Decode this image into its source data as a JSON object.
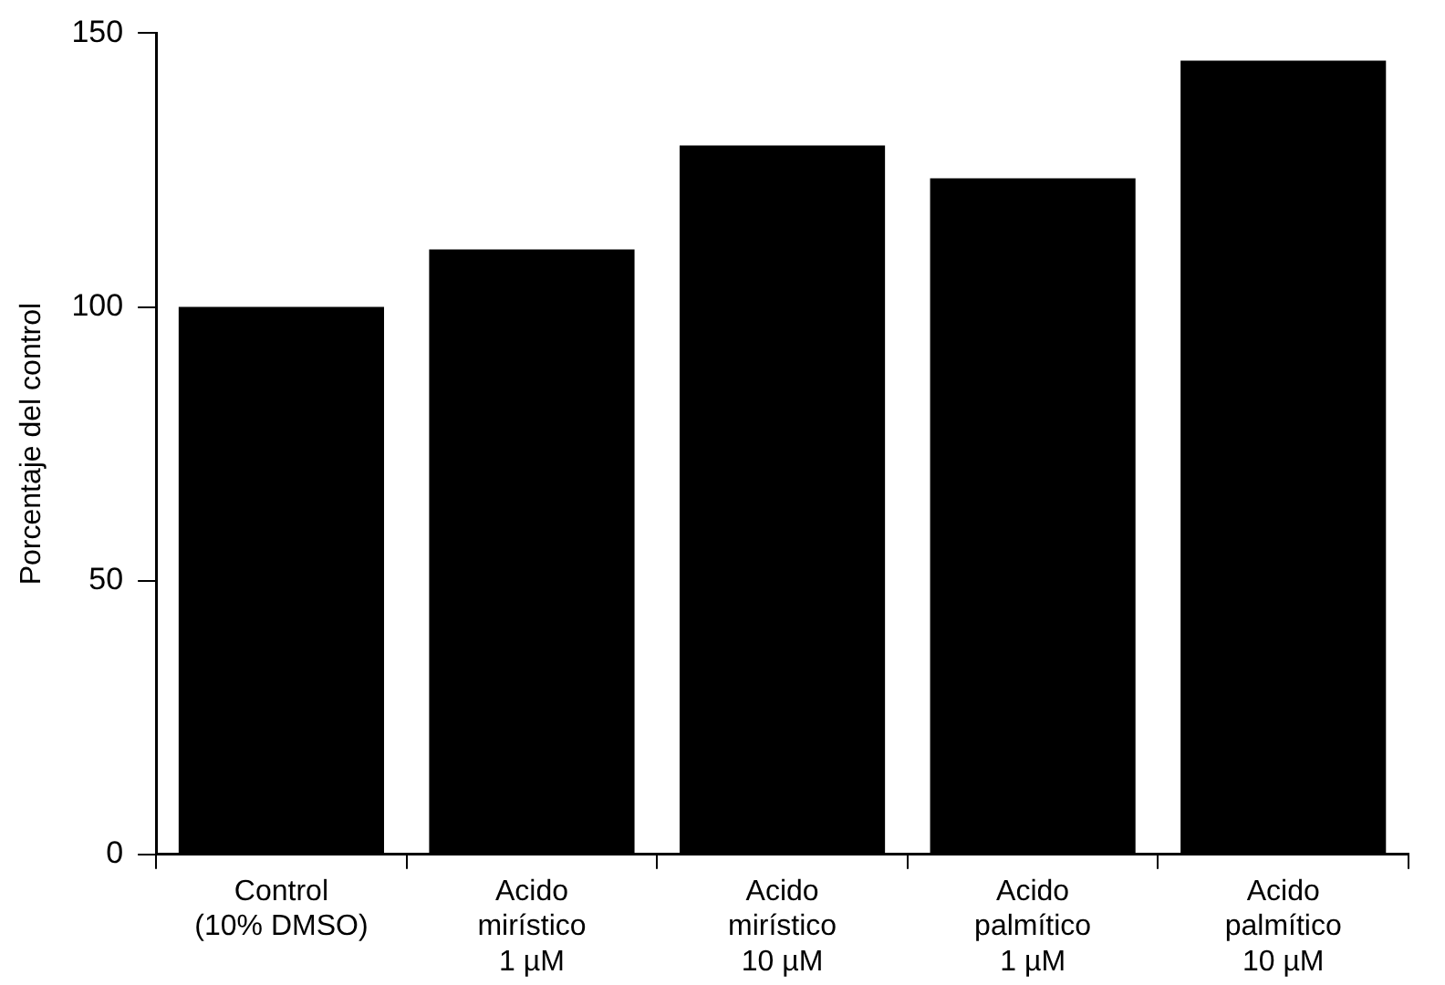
{
  "chart_data": {
    "type": "bar",
    "ylabel": "Porcentaje del control",
    "categories": [
      "Control\n(10% DMSO)",
      "Acido\nmirístico\n1 µM",
      "Acido\nmirístico\n10 µM",
      "Acido\npalmítico\n1 µM",
      "Acido\npalmítico\n10 µM"
    ],
    "values": [
      100,
      110.5,
      129.5,
      123.5,
      145
    ],
    "color": "#000000",
    "ylim": [
      0,
      150
    ],
    "yticks": [
      0,
      50,
      100,
      150
    ],
    "grid": false,
    "legend": false
  }
}
